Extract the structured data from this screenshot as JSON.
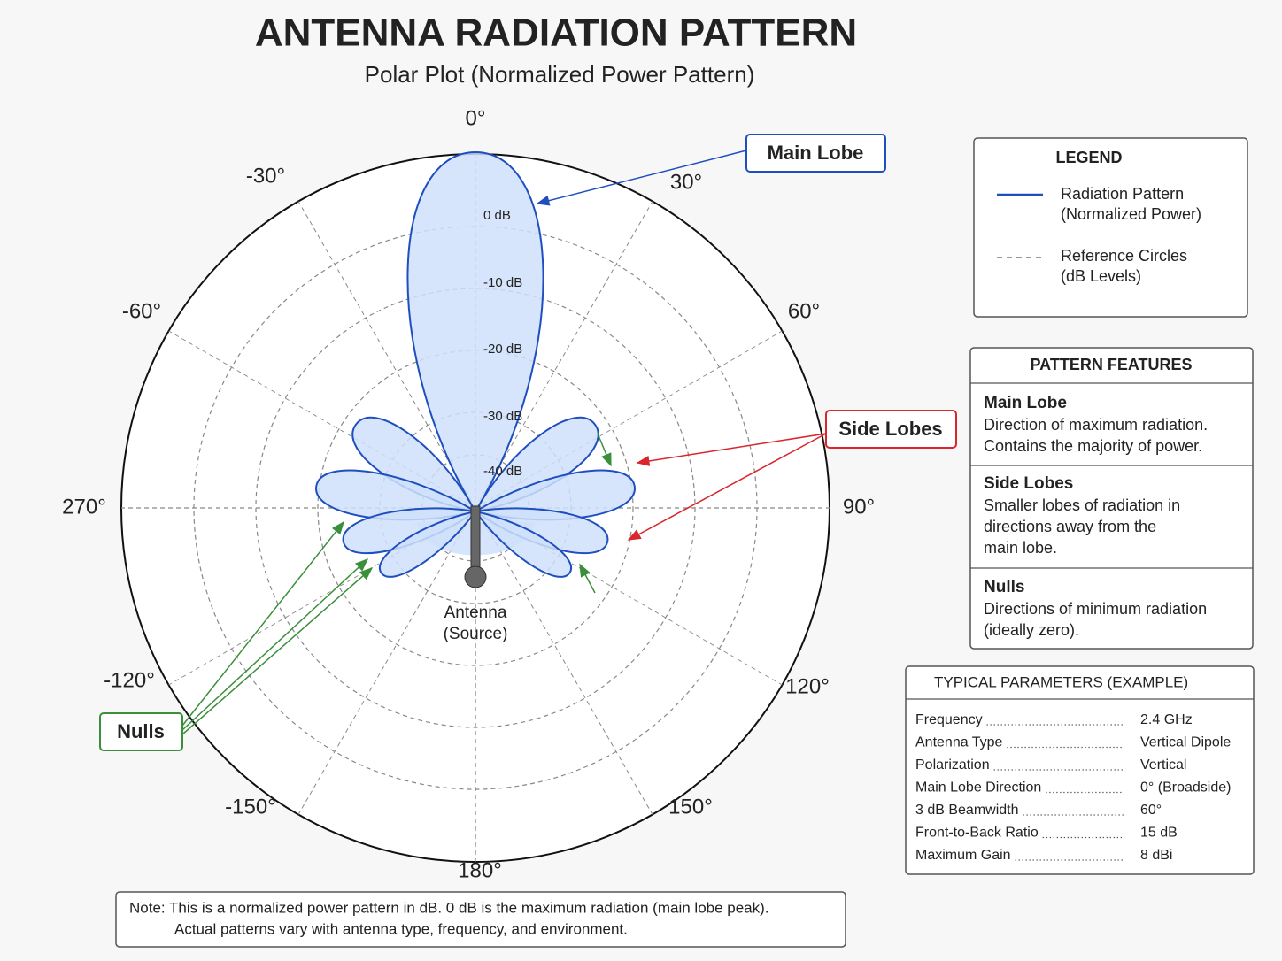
{
  "title": "ANTENNA RADIATION PATTERN",
  "subtitle": "Polar Plot (Normalized Power Pattern)",
  "angle_labels": [
    "0°",
    "30°",
    "60°",
    "90°",
    "120°",
    "150°",
    "180°",
    "-150°",
    "-120°",
    "270°",
    "-60°",
    "-30°"
  ],
  "ring_labels": [
    "0 dB",
    "-10 dB",
    "-20 dB",
    "-30 dB",
    "-40 dB"
  ],
  "antenna_label": [
    "Antenna",
    "(Source)"
  ],
  "callouts": {
    "main_lobe": "Main Lobe",
    "side_lobes": "Side Lobes",
    "nulls": "Nulls"
  },
  "legend": {
    "title": "LEGEND",
    "items": [
      {
        "label": [
          "Radiation Pattern",
          "(Normalized Power)"
        ]
      },
      {
        "label": [
          "Reference Circles",
          "(dB Levels)"
        ]
      }
    ]
  },
  "features": {
    "title": "PATTERN FEATURES",
    "items": [
      {
        "name": "Main Lobe",
        "description": [
          "Direction of maximum radiation.",
          "Contains the majority of power."
        ]
      },
      {
        "name": "Side Lobes",
        "description": [
          "Smaller lobes of radiation in",
          "directions away from the",
          "main lobe."
        ]
      },
      {
        "name": "Nulls",
        "description": [
          "Directions of minimum radiation",
          "(ideally zero)."
        ]
      }
    ]
  },
  "parameters": {
    "title": "TYPICAL PARAMETERS (EXAMPLE)",
    "rows": [
      [
        "Frequency",
        "2.4 GHz"
      ],
      [
        "Antenna Type",
        "Vertical Dipole"
      ],
      [
        "Polarization",
        "Vertical"
      ],
      [
        "Main Lobe Direction",
        "0° (Broadside)"
      ],
      [
        "3 dB Beamwidth",
        "60°"
      ],
      [
        "Front-to-Back Ratio",
        "15 dB"
      ],
      [
        "Maximum Gain",
        "8 dBi"
      ]
    ]
  },
  "note": [
    "Note: This is a normalized power pattern in dB. 0 dB is the maximum radiation (main lobe peak).",
    "Actual patterns vary with antenna type, frequency, and environment."
  ]
}
